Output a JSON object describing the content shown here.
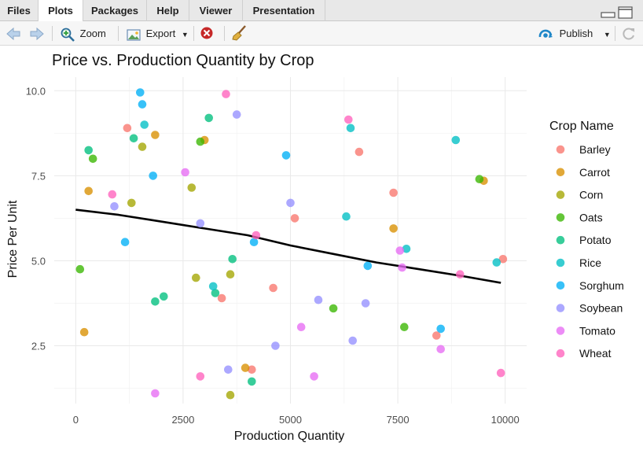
{
  "tabs": [
    {
      "label": "Files"
    },
    {
      "label": "Plots"
    },
    {
      "label": "Packages"
    },
    {
      "label": "Help"
    },
    {
      "label": "Viewer"
    },
    {
      "label": "Presentation"
    }
  ],
  "toolbar": {
    "zoom_label": "Zoom",
    "export_label": "Export",
    "publish_label": "Publish"
  },
  "colors": {
    "Barley": "#F8766D",
    "Carrot": "#D89000",
    "Corn": "#A3A500",
    "Oats": "#39B600",
    "Potato": "#00BF7D",
    "Rice": "#00BFC4",
    "Sorghum": "#00B0F6",
    "Soybean": "#9590FF",
    "Tomato": "#E76BF3",
    "Wheat": "#FF62BC"
  },
  "chart_data": {
    "type": "scatter",
    "title": "Price vs. Production Quantity by Crop",
    "xlabel": "Production Quantity",
    "ylabel": "Price Per Unit",
    "xlim": [
      -500,
      10500
    ],
    "ylim": [
      0.8,
      10.4
    ],
    "x_ticks": [
      0,
      2500,
      5000,
      7500,
      10000
    ],
    "x_tick_labels": [
      "0",
      "2500",
      "5000",
      "7500",
      "10000"
    ],
    "y_ticks": [
      2.5,
      5.0,
      7.5,
      10.0
    ],
    "y_tick_labels": [
      "2.5",
      "5.0",
      "7.5",
      "10.0"
    ],
    "grid": true,
    "legend_title": "Crop Name",
    "legend_position": "right",
    "trend_line": [
      [
        0,
        6.5
      ],
      [
        1000,
        6.35
      ],
      [
        2000,
        6.15
      ],
      [
        3000,
        5.95
      ],
      [
        4000,
        5.75
      ],
      [
        5000,
        5.45
      ],
      [
        6000,
        5.2
      ],
      [
        7000,
        4.95
      ],
      [
        8000,
        4.75
      ],
      [
        9000,
        4.55
      ],
      [
        9900,
        4.35
      ]
    ],
    "series": [
      {
        "name": "Barley",
        "points": [
          [
            1200,
            8.9
          ],
          [
            3400,
            3.9
          ],
          [
            4100,
            1.8
          ],
          [
            4600,
            4.2
          ],
          [
            5100,
            6.25
          ],
          [
            6600,
            8.2
          ],
          [
            7400,
            7.0
          ],
          [
            8400,
            2.8
          ],
          [
            9950,
            5.05
          ]
        ]
      },
      {
        "name": "Carrot",
        "points": [
          [
            200,
            2.9
          ],
          [
            300,
            7.05
          ],
          [
            1850,
            8.7
          ],
          [
            3000,
            8.55
          ],
          [
            3950,
            1.85
          ],
          [
            7400,
            5.95
          ],
          [
            9500,
            7.35
          ]
        ]
      },
      {
        "name": "Corn",
        "points": [
          [
            1300,
            6.7
          ],
          [
            1550,
            8.35
          ],
          [
            2700,
            7.15
          ],
          [
            2800,
            4.5
          ],
          [
            3600,
            4.6
          ],
          [
            3600,
            1.05
          ]
        ]
      },
      {
        "name": "Oats",
        "points": [
          [
            100,
            4.75
          ],
          [
            400,
            8.0
          ],
          [
            2900,
            8.5
          ],
          [
            6000,
            3.6
          ],
          [
            7650,
            3.05
          ],
          [
            9400,
            7.4
          ]
        ]
      },
      {
        "name": "Potato",
        "points": [
          [
            300,
            8.25
          ],
          [
            1350,
            8.6
          ],
          [
            1850,
            3.8
          ],
          [
            2050,
            3.95
          ],
          [
            3100,
            9.2
          ],
          [
            3250,
            4.05
          ],
          [
            3650,
            5.05
          ],
          [
            4100,
            1.45
          ]
        ]
      },
      {
        "name": "Rice",
        "points": [
          [
            1600,
            9.0
          ],
          [
            3200,
            4.25
          ],
          [
            6300,
            6.3
          ],
          [
            6400,
            8.9
          ],
          [
            7700,
            5.35
          ],
          [
            8850,
            8.55
          ],
          [
            9800,
            4.95
          ]
        ]
      },
      {
        "name": "Sorghum",
        "points": [
          [
            1150,
            5.55
          ],
          [
            1500,
            9.95
          ],
          [
            1550,
            9.6
          ],
          [
            1800,
            7.5
          ],
          [
            4150,
            5.55
          ],
          [
            4900,
            8.1
          ],
          [
            6800,
            4.85
          ],
          [
            8500,
            3.0
          ]
        ]
      },
      {
        "name": "Soybean",
        "points": [
          [
            900,
            6.6
          ],
          [
            2900,
            6.1
          ],
          [
            3550,
            1.8
          ],
          [
            3750,
            9.3
          ],
          [
            4650,
            2.5
          ],
          [
            5000,
            6.7
          ],
          [
            5650,
            3.85
          ],
          [
            6450,
            2.65
          ],
          [
            6750,
            3.75
          ]
        ]
      },
      {
        "name": "Tomato",
        "points": [
          [
            1850,
            1.1
          ],
          [
            2550,
            7.6
          ],
          [
            5250,
            3.05
          ],
          [
            5550,
            1.6
          ],
          [
            7550,
            5.3
          ],
          [
            7600,
            4.8
          ],
          [
            8500,
            2.4
          ]
        ]
      },
      {
        "name": "Wheat",
        "points": [
          [
            850,
            6.95
          ],
          [
            2900,
            1.6
          ],
          [
            3500,
            9.9
          ],
          [
            4200,
            5.75
          ],
          [
            6350,
            9.15
          ],
          [
            8950,
            4.6
          ],
          [
            9900,
            1.7
          ]
        ]
      }
    ]
  }
}
